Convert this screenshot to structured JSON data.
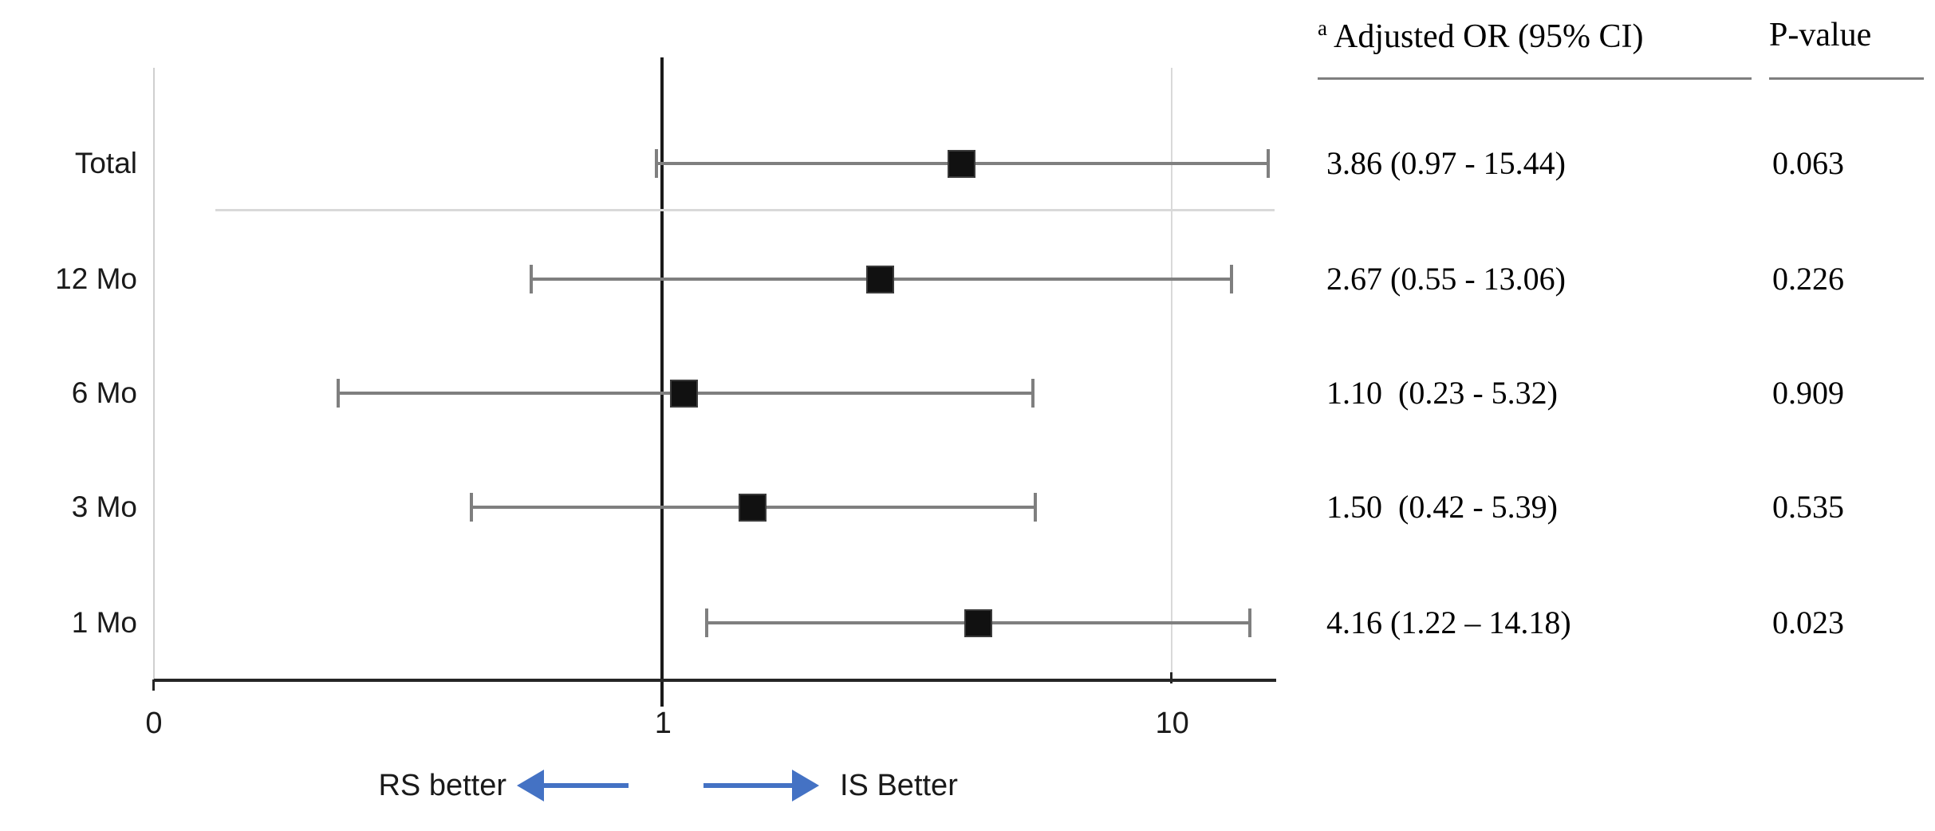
{
  "chart_data": {
    "type": "forest",
    "xscale": "log",
    "xlim": [
      0.1,
      16
    ],
    "grid": "partial-vertical",
    "legend_position": "none",
    "reference_line": 1,
    "vertical_gridlines_at": [
      0.1,
      10
    ],
    "xticks": [
      {
        "value": 0.1,
        "label": "0"
      },
      {
        "value": 1,
        "label": "1"
      },
      {
        "value": 10,
        "label": "10"
      }
    ],
    "rows": [
      {
        "label": "Total",
        "or": 3.86,
        "ci_low": 0.97,
        "ci_high": 15.44,
        "or_ci_text": "3.86 (0.97 - 15.44)",
        "p_value": "0.063"
      },
      {
        "label": "12 Mo",
        "or": 2.67,
        "ci_low": 0.55,
        "ci_high": 13.06,
        "or_ci_text": "2.67 (0.55 - 13.06)",
        "p_value": "0.226"
      },
      {
        "label": "6 Mo",
        "or": 1.1,
        "ci_low": 0.23,
        "ci_high": 5.32,
        "or_ci_text": "1.10  (0.23 - 5.32)",
        "p_value": "0.909"
      },
      {
        "label": "3 Mo",
        "or": 1.5,
        "ci_low": 0.42,
        "ci_high": 5.39,
        "or_ci_text": "1.50  (0.42 - 5.39)",
        "p_value": "0.535"
      },
      {
        "label": "1 Mo",
        "or": 4.16,
        "ci_low": 1.22,
        "ci_high": 14.18,
        "or_ci_text": "4.16 (1.22 – 14.18)",
        "p_value": "0.023"
      }
    ]
  },
  "table": {
    "or_header_sup": "a",
    "or_header": "Adjusted OR (95% CI)",
    "p_header": "P-value"
  },
  "annotations": {
    "left_label": "RS better",
    "right_label": "IS Better",
    "arrow_color": "#4472c4"
  },
  "colors": {
    "marker": "#111111",
    "whisker": "#7f7f7f",
    "axis": "#262626",
    "gridline": "#d1d1d1",
    "separator": "#d9d9d9",
    "arrow_blue": "#4472c4",
    "background": "#ffffff"
  }
}
